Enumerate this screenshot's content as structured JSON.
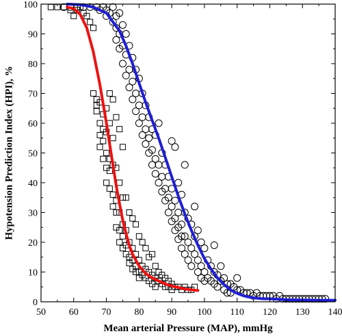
{
  "chart_data": {
    "type": "scatter",
    "xlabel": "Mean arterial Pressure (MAP), mmHg",
    "ylabel": "Hypotension Prediction Index (HPI), %",
    "xlim": [
      50,
      140
    ],
    "ylim": [
      0,
      100
    ],
    "x_ticks": [
      50,
      60,
      70,
      80,
      90,
      100,
      110,
      120,
      130,
      140
    ],
    "y_ticks": [
      0,
      10,
      20,
      30,
      40,
      50,
      60,
      70,
      80,
      90,
      100
    ],
    "grid": false,
    "legend": "none",
    "series": [
      {
        "marker": "square",
        "color": "#000000",
        "points": [
          [
            53,
            99
          ],
          [
            55,
            99
          ],
          [
            57,
            99
          ],
          [
            59,
            98
          ],
          [
            60,
            96
          ],
          [
            61,
            98
          ],
          [
            62,
            99
          ],
          [
            63,
            97
          ],
          [
            64,
            96
          ],
          [
            65,
            94
          ],
          [
            66,
            92
          ],
          [
            66,
            70
          ],
          [
            67,
            68
          ],
          [
            67,
            66
          ],
          [
            67,
            64
          ],
          [
            68,
            67
          ],
          [
            68,
            60
          ],
          [
            68,
            56
          ],
          [
            68,
            52
          ],
          [
            69,
            63
          ],
          [
            69,
            58
          ],
          [
            69,
            54
          ],
          [
            69,
            48
          ],
          [
            70,
            65
          ],
          [
            70,
            57
          ],
          [
            70,
            50
          ],
          [
            70,
            45
          ],
          [
            70,
            40
          ],
          [
            71,
            70
          ],
          [
            71,
            60
          ],
          [
            71,
            48
          ],
          [
            71,
            44
          ],
          [
            71,
            38
          ],
          [
            72,
            68
          ],
          [
            72,
            55
          ],
          [
            72,
            46
          ],
          [
            72,
            36
          ],
          [
            72,
            32
          ],
          [
            73,
            62
          ],
          [
            73,
            45
          ],
          [
            73,
            34
          ],
          [
            73,
            30
          ],
          [
            73,
            25
          ],
          [
            74,
            58
          ],
          [
            74,
            40
          ],
          [
            74,
            30
          ],
          [
            74,
            24
          ],
          [
            74,
            20
          ],
          [
            75,
            52
          ],
          [
            75,
            35
          ],
          [
            75,
            26
          ],
          [
            75,
            22
          ],
          [
            75,
            18
          ],
          [
            76,
            35
          ],
          [
            76,
            24
          ],
          [
            76,
            19
          ],
          [
            76,
            16
          ],
          [
            77,
            30
          ],
          [
            77,
            20
          ],
          [
            77,
            15
          ],
          [
            77,
            13
          ],
          [
            78,
            28
          ],
          [
            78,
            18
          ],
          [
            78,
            14
          ],
          [
            78,
            11
          ],
          [
            79,
            26
          ],
          [
            79,
            16
          ],
          [
            79,
            12
          ],
          [
            79,
            10
          ],
          [
            80,
            22
          ],
          [
            80,
            14
          ],
          [
            80,
            10
          ],
          [
            80,
            8
          ],
          [
            81,
            20
          ],
          [
            81,
            12
          ],
          [
            81,
            9
          ],
          [
            82,
            18
          ],
          [
            82,
            11
          ],
          [
            82,
            8
          ],
          [
            83,
            15
          ],
          [
            83,
            10
          ],
          [
            83,
            7
          ],
          [
            84,
            16
          ],
          [
            84,
            9
          ],
          [
            84,
            6
          ],
          [
            85,
            12
          ],
          [
            85,
            8
          ],
          [
            85,
            5
          ],
          [
            86,
            10
          ],
          [
            86,
            7
          ],
          [
            87,
            9
          ],
          [
            87,
            6
          ],
          [
            88,
            8
          ],
          [
            88,
            5
          ],
          [
            89,
            7
          ],
          [
            89,
            5
          ],
          [
            90,
            6
          ],
          [
            90,
            4
          ],
          [
            91,
            5
          ],
          [
            92,
            5
          ],
          [
            93,
            4
          ],
          [
            94,
            5
          ],
          [
            95,
            4
          ],
          [
            96,
            4
          ],
          [
            97,
            5
          ]
        ]
      },
      {
        "marker": "circle",
        "color": "#000000",
        "points": [
          [
            57,
            99
          ],
          [
            59,
            99
          ],
          [
            61,
            99
          ],
          [
            63,
            99
          ],
          [
            65,
            99
          ],
          [
            67,
            99
          ],
          [
            68,
            98
          ],
          [
            69,
            99
          ],
          [
            70,
            98
          ],
          [
            70,
            96
          ],
          [
            71,
            97
          ],
          [
            72,
            99
          ],
          [
            72,
            94
          ],
          [
            73,
            96
          ],
          [
            73,
            92
          ],
          [
            73,
            88
          ],
          [
            74,
            97
          ],
          [
            74,
            90
          ],
          [
            74,
            85
          ],
          [
            75,
            93
          ],
          [
            75,
            86
          ],
          [
            75,
            80
          ],
          [
            76,
            90
          ],
          [
            76,
            83
          ],
          [
            76,
            76
          ],
          [
            77,
            86
          ],
          [
            77,
            78
          ],
          [
            77,
            72
          ],
          [
            78,
            82
          ],
          [
            78,
            74
          ],
          [
            78,
            68
          ],
          [
            79,
            78
          ],
          [
            79,
            70
          ],
          [
            79,
            64
          ],
          [
            80,
            75
          ],
          [
            80,
            66
          ],
          [
            80,
            60
          ],
          [
            81,
            70
          ],
          [
            81,
            62
          ],
          [
            81,
            56
          ],
          [
            82,
            66
          ],
          [
            82,
            58
          ],
          [
            82,
            53
          ],
          [
            83,
            62
          ],
          [
            83,
            55
          ],
          [
            83,
            50
          ],
          [
            84,
            58
          ],
          [
            84,
            51
          ],
          [
            84,
            46
          ],
          [
            85,
            56
          ],
          [
            85,
            48
          ],
          [
            85,
            43
          ],
          [
            86,
            60
          ],
          [
            86,
            46
          ],
          [
            86,
            40
          ],
          [
            87,
            50
          ],
          [
            87,
            42
          ],
          [
            87,
            37
          ],
          [
            88,
            46
          ],
          [
            88,
            38
          ],
          [
            88,
            34
          ],
          [
            89,
            42
          ],
          [
            89,
            35
          ],
          [
            89,
            30
          ],
          [
            90,
            54
          ],
          [
            90,
            38
          ],
          [
            90,
            32
          ],
          [
            90,
            27
          ],
          [
            91,
            52
          ],
          [
            91,
            34
          ],
          [
            91,
            28
          ],
          [
            91,
            24
          ],
          [
            92,
            40
          ],
          [
            92,
            30
          ],
          [
            92,
            25
          ],
          [
            92,
            21
          ],
          [
            93,
            36
          ],
          [
            93,
            26
          ],
          [
            93,
            22
          ],
          [
            93,
            18
          ],
          [
            94,
            46
          ],
          [
            94,
            30
          ],
          [
            94,
            22
          ],
          [
            94,
            16
          ],
          [
            95,
            28
          ],
          [
            95,
            20
          ],
          [
            95,
            14
          ],
          [
            96,
            26
          ],
          [
            96,
            18
          ],
          [
            96,
            12
          ],
          [
            97,
            32
          ],
          [
            97,
            22
          ],
          [
            97,
            16
          ],
          [
            98,
            24
          ],
          [
            98,
            14
          ],
          [
            98,
            10
          ],
          [
            99,
            20
          ],
          [
            99,
            12
          ],
          [
            99,
            8
          ],
          [
            100,
            18
          ],
          [
            100,
            10
          ],
          [
            100,
            7
          ],
          [
            101,
            14
          ],
          [
            101,
            8
          ],
          [
            102,
            12
          ],
          [
            102,
            7
          ],
          [
            103,
            19
          ],
          [
            103,
            10
          ],
          [
            103,
            6
          ],
          [
            104,
            9
          ],
          [
            104,
            5
          ],
          [
            105,
            12
          ],
          [
            105,
            7
          ],
          [
            106,
            8
          ],
          [
            106,
            4
          ],
          [
            107,
            6
          ],
          [
            107,
            3
          ],
          [
            108,
            6
          ],
          [
            108,
            3
          ],
          [
            109,
            5
          ],
          [
            110,
            8
          ],
          [
            110,
            4
          ],
          [
            111,
            4
          ],
          [
            112,
            3
          ],
          [
            113,
            3
          ],
          [
            114,
            3
          ],
          [
            115,
            2
          ],
          [
            116,
            3
          ],
          [
            117,
            2
          ],
          [
            118,
            2
          ],
          [
            119,
            2
          ],
          [
            120,
            2
          ],
          [
            121,
            2
          ],
          [
            122,
            1
          ],
          [
            123,
            2
          ],
          [
            124,
            1
          ],
          [
            125,
            1
          ],
          [
            126,
            1
          ],
          [
            127,
            1
          ],
          [
            128,
            1
          ],
          [
            129,
            1
          ],
          [
            130,
            1
          ],
          [
            131,
            1
          ],
          [
            132,
            1
          ],
          [
            133,
            1
          ],
          [
            134,
            1
          ],
          [
            135,
            1
          ],
          [
            136,
            1
          ],
          [
            137,
            1
          ]
        ]
      },
      {
        "type": "line",
        "color": "#ee1111",
        "x": [
          58,
          60,
          62,
          64,
          66,
          68,
          70,
          71,
          72,
          73,
          74,
          75,
          76,
          77,
          78,
          80,
          82,
          84,
          86,
          88,
          90,
          92,
          94,
          96,
          98
        ],
        "y": [
          99,
          98.5,
          96.5,
          92,
          84,
          73,
          60,
          53,
          46,
          39,
          33,
          27.5,
          23,
          19,
          16,
          12,
          9.5,
          8,
          7,
          6,
          5.3,
          4.8,
          4.3,
          4,
          3.8
        ]
      },
      {
        "type": "line",
        "color": "#1f1fd6",
        "x": [
          58,
          62,
          66,
          70,
          74,
          76,
          78,
          80,
          82,
          84,
          86,
          88,
          90,
          92,
          94,
          96,
          98,
          100,
          102,
          104,
          106,
          108,
          110,
          112,
          114,
          116,
          118,
          120,
          125,
          130,
          135,
          140
        ],
        "y": [
          100,
          99.8,
          99,
          97,
          91,
          86,
          80,
          73.5,
          67,
          61,
          55,
          48.5,
          42,
          35.5,
          29.5,
          24,
          19,
          14.5,
          11,
          8,
          5.8,
          4,
          2.8,
          2,
          1.5,
          1.2,
          1,
          1,
          0.7,
          0.6,
          0.5,
          0.5
        ]
      }
    ]
  }
}
